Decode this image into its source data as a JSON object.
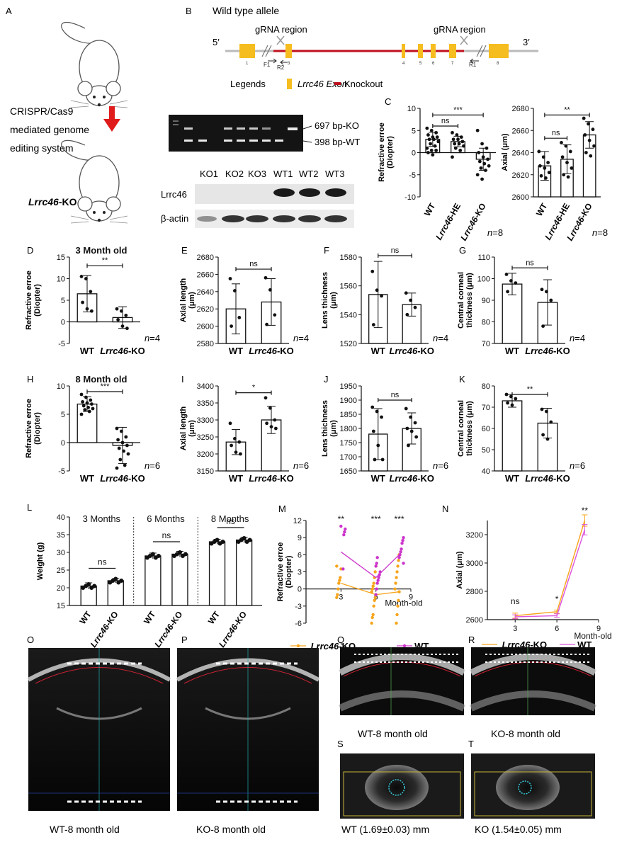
{
  "panel_letters": [
    "A",
    "B",
    "C",
    "D",
    "E",
    "F",
    "G",
    "H",
    "I",
    "J",
    "K",
    "L",
    "M",
    "N",
    "O",
    "P",
    "Q",
    "R",
    "S",
    "T"
  ],
  "panelA": {
    "step1": "CRISPR/Cas9",
    "step2": "mediated genome",
    "step3": "editing system",
    "mouse_label_italic": "Lrrc46",
    "mouse_label_suffix": "-KO"
  },
  "panelB": {
    "title": "Wild type allele",
    "end5": "5′",
    "end3": "3′",
    "grna1": "gRNA region",
    "grna2": "gRNA region",
    "primers": [
      "F1",
      "R2",
      "R1"
    ],
    "exon_numbers": [
      "1",
      "2",
      "3",
      "4",
      "5",
      "6",
      "7",
      "8"
    ],
    "legend_title": "Legends",
    "legend_exon": "Lrrc46 Exon",
    "legend_knockout": "Knockout",
    "gel_labels": [
      "697 bp-KO",
      "398 bp-WT"
    ],
    "western_lanes": [
      "KO1",
      "KO2",
      "KO3",
      "WT1",
      "WT2",
      "WT3"
    ],
    "western_rows": [
      "Lrrc46",
      "β-actin"
    ]
  },
  "captions": {
    "O": "WT-8 month old",
    "P": "KO-8 month old",
    "Q": "WT-8 month old",
    "R": "KO-8 month old",
    "S": "WT (1.69±0.03) mm",
    "T": "KO (1.54±0.05) mm"
  },
  "chart_data": [
    {
      "panel": "C",
      "type": "bar",
      "categories": [
        "WT",
        "Lrrc46-HE",
        "Lrrc46-KO"
      ],
      "values": [
        3,
        2.5,
        -1.5
      ],
      "errors": [
        1.6,
        1.2,
        2.5
      ],
      "points": [
        [
          5.5,
          5,
          4.5,
          4,
          3.5,
          3.5,
          3,
          3,
          2.5,
          2,
          1.5,
          1,
          0.5,
          0.5,
          0,
          -0.5
        ],
        [
          4.5,
          4,
          3.5,
          3,
          3,
          2.5,
          2,
          2,
          1.5,
          1,
          0.5,
          -1
        ],
        [
          5,
          2,
          1,
          0,
          -1,
          -1.5,
          -2,
          -2.5,
          -3,
          -3.5,
          -4,
          -5,
          -6
        ]
      ],
      "ylabel": "Refractive erroe\n(Diopter)",
      "ylim": [
        -10,
        10
      ],
      "yticks": [
        -10,
        -5,
        0,
        5,
        10
      ],
      "sig": [
        {
          "from": 0,
          "to": 2,
          "label": "***",
          "level": 8.5
        },
        {
          "from": 0,
          "to": 1,
          "label": "ns",
          "level": 6
        }
      ],
      "n": "n=8"
    },
    {
      "panel": "C2",
      "type": "bar",
      "categories": [
        "WT",
        "Lrrc46-HE",
        "Lrrc46-KO"
      ],
      "values": [
        2628,
        2634,
        2656
      ],
      "errors": [
        13,
        13,
        12
      ],
      "points": [
        [
          2641,
          2636,
          2631,
          2628,
          2626,
          2622,
          2619,
          2617
        ],
        [
          2649,
          2646,
          2641,
          2636,
          2631,
          2626,
          2620,
          2618
        ],
        [
          2671,
          2666,
          2661,
          2656,
          2651,
          2646,
          2640,
          2637
        ]
      ],
      "ylabel": "Axial (μm)",
      "ylim": [
        2600,
        2680
      ],
      "yticks": [
        2600,
        2620,
        2640,
        2660,
        2680
      ],
      "sig": [
        {
          "from": 0,
          "to": 2,
          "label": "**",
          "level": 2674
        },
        {
          "from": 0,
          "to": 1,
          "label": "ns",
          "level": 2653
        }
      ],
      "n": "n=8"
    },
    {
      "panel": "D",
      "type": "bar",
      "title": "3 Month old",
      "categories": [
        "WT",
        "Lrrc46-KO"
      ],
      "values": [
        6.5,
        1
      ],
      "errors": [
        4.2,
        2.5
      ],
      "points": [
        [
          10.5,
          10,
          7,
          4.5,
          3,
          2.5
        ],
        [
          3,
          2.5,
          1.5,
          0.5,
          -1,
          -1.5
        ]
      ],
      "ylabel": "Refractive erroe\n(Diopter)",
      "ylim": [
        -5,
        15
      ],
      "yticks": [
        -5,
        0,
        5,
        10,
        15
      ],
      "sig": [
        {
          "from": 0,
          "to": 1,
          "label": "**",
          "level": 13
        }
      ],
      "n": "n=4"
    },
    {
      "panel": "E",
      "type": "bar",
      "categories": [
        "WT",
        "Lrrc46-KO"
      ],
      "values": [
        2620,
        2628
      ],
      "errors": [
        29,
        27
      ],
      "points": [
        [
          2655,
          2641,
          2610,
          2600
        ],
        [
          2656,
          2642,
          2613,
          2602
        ]
      ],
      "ylabel": "Axial length\n(μm)",
      "ylim": [
        2580,
        2680
      ],
      "yticks": [
        2580,
        2600,
        2620,
        2640,
        2660,
        2680
      ],
      "sig": [
        {
          "from": 0,
          "to": 1,
          "label": "ns",
          "level": 2666
        }
      ],
      "n": "n=4"
    },
    {
      "panel": "F",
      "type": "bar",
      "categories": [
        "WT",
        "Lrrc46-KO"
      ],
      "values": [
        1554,
        1547
      ],
      "errors": [
        23,
        8
      ],
      "points": [
        [
          1570,
          1557,
          1553,
          1533
        ],
        [
          1555,
          1550,
          1545,
          1540
        ]
      ],
      "ylabel": "Lens thichness\n(μm)",
      "ylim": [
        1520,
        1580
      ],
      "yticks": [
        1520,
        1540,
        1560,
        1580
      ],
      "sig": [
        {
          "from": 0,
          "to": 1,
          "label": "ns",
          "level": 1581
        }
      ],
      "n": "n=4"
    },
    {
      "panel": "G",
      "type": "bar",
      "categories": [
        "WT",
        "Lrrc46-KO"
      ],
      "values": [
        97.5,
        89
      ],
      "errors": [
        5,
        10.5
      ],
      "points": [
        [
          102,
          99,
          98,
          94
        ],
        [
          95,
          94,
          90,
          78
        ]
      ],
      "ylabel": "Central corneal\nthickness (μm)",
      "ylim": [
        70,
        110
      ],
      "yticks": [
        70,
        80,
        90,
        100,
        110
      ],
      "sig": [
        {
          "from": 0,
          "to": 1,
          "label": "ns",
          "level": 105
        }
      ],
      "n": "n=4"
    },
    {
      "panel": "H",
      "type": "bar",
      "title": "8 Month old",
      "categories": [
        "WT",
        "Lrrc46-KO"
      ],
      "values": [
        6.8,
        -0.5
      ],
      "errors": [
        1.3,
        3.2
      ],
      "points": [
        [
          8.5,
          8,
          7.5,
          7.2,
          7,
          6.8,
          6.5,
          6.2,
          6,
          5.8,
          5.5,
          5
        ],
        [
          2.5,
          2,
          1,
          0.5,
          0,
          -0.5,
          -1,
          -1.5,
          -2,
          -3,
          -4,
          -4.5
        ]
      ],
      "ylabel": "Refractive erroe\n(Diopter)",
      "ylim": [
        -5,
        10
      ],
      "yticks": [
        -5,
        0,
        5,
        10
      ],
      "sig": [
        {
          "from": 0,
          "to": 1,
          "label": "***",
          "level": 9
        }
      ],
      "n": "n=6"
    },
    {
      "panel": "I",
      "type": "bar",
      "categories": [
        "WT",
        "Lrrc46-KO"
      ],
      "values": [
        3235,
        3300
      ],
      "errors": [
        37,
        40
      ],
      "points": [
        [
          3290,
          3245,
          3235,
          3225,
          3205,
          3200
        ],
        [
          3365,
          3335,
          3300,
          3290,
          3280,
          3275
        ]
      ],
      "ylabel": "Axial length\n(μm)",
      "ylim": [
        3150,
        3400
      ],
      "yticks": [
        3150,
        3200,
        3250,
        3300,
        3350,
        3400
      ],
      "sig": [
        {
          "from": 0,
          "to": 1,
          "label": "*",
          "level": 3380
        }
      ],
      "n": "n=6"
    },
    {
      "panel": "J",
      "type": "bar",
      "categories": [
        "WT",
        "Lrrc46-KO"
      ],
      "values": [
        1780,
        1800
      ],
      "errors": [
        90,
        55
      ],
      "points": [
        [
          1875,
          1860,
          1840,
          1790,
          1740,
          1690,
          1690
        ],
        [
          1870,
          1840,
          1820,
          1800,
          1790,
          1770,
          1740
        ]
      ],
      "ylabel": "Lens thichness\n(μm)",
      "ylim": [
        1650,
        1950
      ],
      "yticks": [
        1650,
        1700,
        1750,
        1800,
        1850,
        1900,
        1950
      ],
      "sig": [
        {
          "from": 0,
          "to": 1,
          "label": "ns",
          "level": 1900
        }
      ],
      "n": "n=6"
    },
    {
      "panel": "K",
      "type": "bar",
      "categories": [
        "WT",
        "Lrrc46-KO"
      ],
      "values": [
        73,
        62.5
      ],
      "errors": [
        3,
        7
      ],
      "points": [
        [
          76,
          75,
          74,
          72,
          71
        ],
        [
          69,
          68,
          63,
          57,
          55
        ]
      ],
      "ylabel": "Central corneal\nthickness (μm)",
      "ylim": [
        40,
        80
      ],
      "yticks": [
        40,
        50,
        60,
        70,
        80
      ],
      "sig": [
        {
          "from": 0,
          "to": 1,
          "label": "**",
          "level": 76
        }
      ],
      "n": "n=6"
    },
    {
      "panel": "L",
      "type": "bar",
      "groups": [
        "3 Months",
        "6 Months",
        "8 Months"
      ],
      "categories": [
        "WT",
        "Lrrc46-KO"
      ],
      "values": [
        [
          20.5,
          22
        ],
        [
          29,
          29.5
        ],
        [
          33,
          33.5
        ]
      ],
      "errors": [
        [
          0.9,
          0.6
        ],
        [
          0.8,
          0.8
        ],
        [
          0.7,
          0.8
        ]
      ],
      "ylabel": "Weight (g)",
      "ylim": [
        15,
        40
      ],
      "yticks": [
        15,
        20,
        25,
        30,
        35,
        40
      ],
      "sig_labels": [
        "ns",
        "ns",
        "ns"
      ]
    },
    {
      "panel": "M",
      "type": "scatter",
      "xlabel": "Month-old",
      "xlim": [
        0,
        9
      ],
      "xticks": [
        3,
        6,
        9
      ],
      "ylim": [
        -6,
        12
      ],
      "yticks": [
        -6,
        -3,
        0,
        3,
        6,
        9,
        12
      ],
      "ylabel": "Refractive erroe\n(Diopter)",
      "series": [
        {
          "name": "Lrrc46-KO",
          "color": "#f7a41c",
          "mean_x": [
            3,
            6,
            8
          ],
          "mean_y": [
            1,
            -1,
            -0.5
          ],
          "points_x": [
            3,
            3,
            3,
            3,
            3,
            3,
            3,
            3,
            6,
            6,
            6,
            6,
            6,
            6,
            6,
            6,
            6,
            6,
            6,
            6,
            6,
            6,
            8,
            8,
            8,
            8,
            8,
            8,
            8,
            8,
            8,
            8,
            8,
            8
          ],
          "points_y": [
            4,
            3.5,
            2,
            1.5,
            1,
            0,
            -1,
            -1.5,
            4,
            3,
            2,
            1,
            0.5,
            0,
            -0.5,
            -1,
            -1.5,
            -2,
            -3,
            -4.5,
            -5,
            -6,
            6,
            5,
            4,
            3,
            2,
            1,
            0,
            -0.5,
            -2,
            -3,
            -4.5,
            -6
          ]
        },
        {
          "name": "WT",
          "color": "#cc33cc",
          "mean_x": [
            3,
            6,
            8
          ],
          "mean_y": [
            6.5,
            2,
            6
          ],
          "points_x": [
            3,
            3,
            3,
            3,
            3,
            6,
            6,
            6,
            6,
            6,
            6,
            6,
            6,
            6,
            6,
            8,
            8,
            8,
            8,
            8,
            8,
            8,
            8
          ],
          "points_y": [
            11,
            10.5,
            10,
            9.5,
            3.5,
            5.5,
            4.5,
            4,
            3,
            2.5,
            2,
            1.5,
            1,
            0,
            -1,
            9,
            8.5,
            8,
            7,
            6.5,
            6,
            5.5,
            4.5
          ]
        }
      ],
      "sig": [
        {
          "x": 3,
          "label": "**"
        },
        {
          "x": 6,
          "label": "***"
        },
        {
          "x": 8,
          "label": "***"
        }
      ]
    },
    {
      "panel": "N",
      "type": "line",
      "xlabel": "Month-old",
      "xlim": [
        1,
        9
      ],
      "xticks": [
        3,
        6,
        9
      ],
      "ylim": [
        2600,
        3300
      ],
      "yticks": [
        2600,
        2800,
        3000,
        3200
      ],
      "ylabel": "Axial (μm)",
      "series": [
        {
          "name": "Lrrc46-KO",
          "color": "#f7a41c",
          "x": [
            3,
            6,
            8
          ],
          "y": [
            2628,
            2656,
            3300
          ],
          "err": [
            18,
            12,
            40
          ]
        },
        {
          "name": "WT",
          "color": "#dd55dd",
          "x": [
            3,
            6,
            8
          ],
          "y": [
            2620,
            2628,
            3235
          ],
          "err": [
            14,
            13,
            37
          ]
        }
      ],
      "sig": [
        {
          "x": 3,
          "label": "ns"
        },
        {
          "x": 6,
          "label": "*"
        },
        {
          "x": 8,
          "label": "**"
        }
      ]
    }
  ]
}
